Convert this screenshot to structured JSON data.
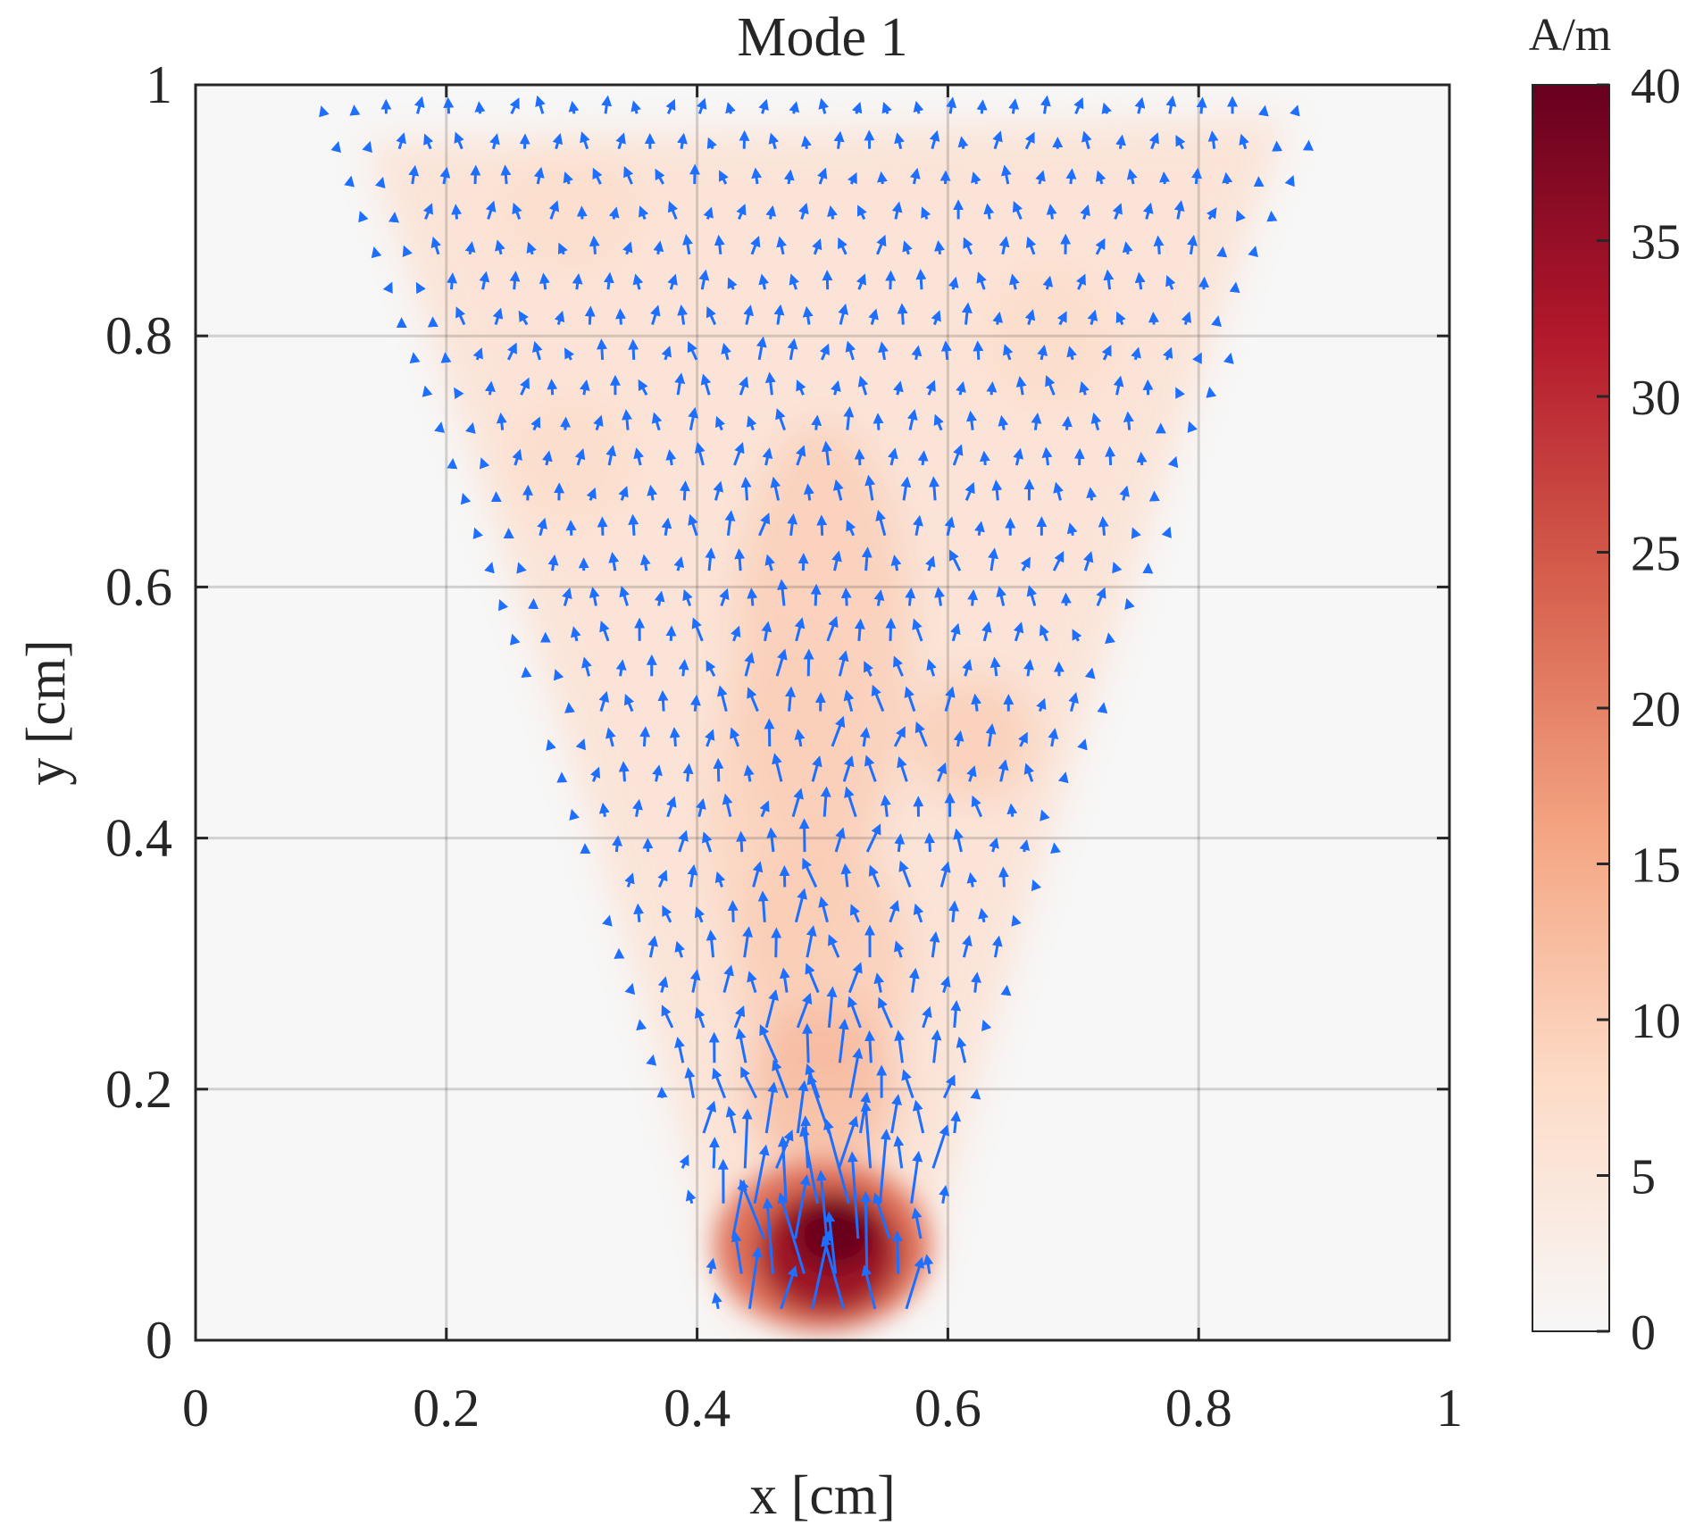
{
  "chart_data": {
    "type": "heatmap",
    "title": "Mode 1",
    "xlabel": "x [cm]",
    "ylabel": "y [cm]",
    "xlim": [
      0,
      1
    ],
    "ylim": [
      0,
      1
    ],
    "xticks": [
      0,
      0.2,
      0.4,
      0.6,
      0.8,
      1
    ],
    "xtick_labels": [
      "0",
      "0.2",
      "0.4",
      "0.6",
      "0.8",
      "1"
    ],
    "yticks": [
      0,
      0.2,
      0.4,
      0.6,
      0.8,
      1
    ],
    "ytick_labels": [
      "0",
      "0.2",
      "0.4",
      "0.6",
      "0.8",
      "1"
    ],
    "grid": true,
    "colorbar": {
      "label": "A/m",
      "range": [
        0,
        40
      ],
      "ticks": [
        0,
        5,
        10,
        15,
        20,
        25,
        30,
        35,
        40
      ],
      "tick_labels": [
        "0",
        "5",
        "10",
        "15",
        "20",
        "25",
        "30",
        "35",
        "40"
      ],
      "colormap": [
        "#f7f7f7",
        "#fddbc7",
        "#f4a582",
        "#d6604d",
        "#b2182b",
        "#67001f"
      ]
    },
    "field": {
      "description": "surface current density magnitude, funnel-shaped region widening from bottom center to top",
      "peak_value": 40,
      "peak_location": [
        0.5,
        0.08
      ],
      "region_bottom_x": [
        0.42,
        0.58
      ],
      "region_top_x": [
        0.1,
        0.93
      ]
    },
    "quiver": {
      "color": "#1f6fff",
      "dominant_direction": "upward",
      "spacing": [
        0.025,
        0.028
      ]
    }
  }
}
